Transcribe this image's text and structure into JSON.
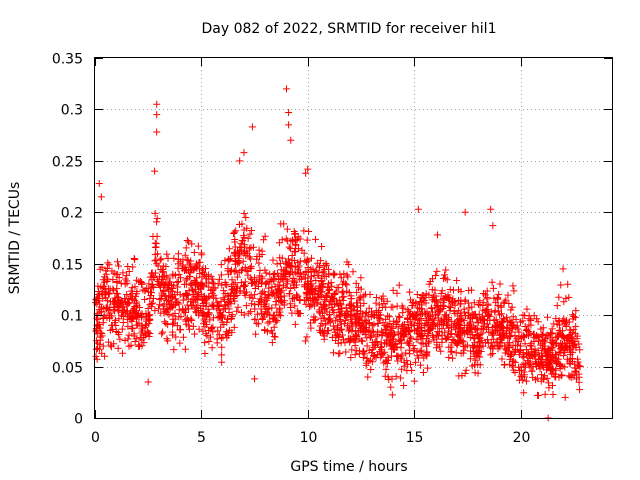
{
  "chart_data": {
    "type": "scatter",
    "title": "Day 082 of 2022, SRMTID for receiver hil1",
    "xlabel": "GPS time / hours",
    "ylabel": "SRMTID / TECUs",
    "xlim": [
      0,
      24.3
    ],
    "ylim": [
      0,
      0.35
    ],
    "x_ticks": [
      0,
      5,
      10,
      15,
      20
    ],
    "x_tick_labels": [
      "0",
      "5",
      "10",
      "15",
      "20"
    ],
    "y_ticks": [
      0,
      0.05,
      0.1,
      0.15,
      0.2,
      0.25,
      0.3,
      0.35
    ],
    "y_tick_labels": [
      "0",
      "0.05",
      "0.1",
      "0.15",
      "0.2",
      "0.25",
      "0.3",
      "0.35"
    ],
    "grid": true,
    "marker": "plus",
    "color": "#ff0000",
    "envelope_note": "dense cloud of points; approximate mean level (hours -> TECUs)",
    "series": [
      {
        "name": "SRMTID",
        "x": [
          0.1,
          0.5,
          1.0,
          1.5,
          2.0,
          2.5,
          2.9,
          3.0,
          3.5,
          4.0,
          4.5,
          5.0,
          5.5,
          6.0,
          6.5,
          7.0,
          7.5,
          8.0,
          8.5,
          9.0,
          9.5,
          10.0,
          10.5,
          11.0,
          11.5,
          12.0,
          12.5,
          13.0,
          13.5,
          14.0,
          14.5,
          15.0,
          15.5,
          16.0,
          16.5,
          17.0,
          17.5,
          18.0,
          18.5,
          19.0,
          19.5,
          20.0,
          20.5,
          21.0,
          21.5,
          22.0,
          22.5,
          22.8
        ],
        "y": [
          0.1,
          0.12,
          0.11,
          0.11,
          0.1,
          0.1,
          0.15,
          0.13,
          0.11,
          0.12,
          0.13,
          0.12,
          0.11,
          0.1,
          0.13,
          0.16,
          0.12,
          0.12,
          0.11,
          0.15,
          0.14,
          0.13,
          0.12,
          0.11,
          0.1,
          0.1,
          0.09,
          0.08,
          0.08,
          0.08,
          0.08,
          0.09,
          0.09,
          0.1,
          0.1,
          0.09,
          0.09,
          0.08,
          0.1,
          0.09,
          0.08,
          0.07,
          0.07,
          0.06,
          0.06,
          0.08,
          0.07,
          0.05
        ]
      }
    ],
    "outliers": [
      {
        "x": 2.9,
        "y": 0.305
      },
      {
        "x": 2.9,
        "y": 0.295
      },
      {
        "x": 2.9,
        "y": 0.278
      },
      {
        "x": 7.4,
        "y": 0.283
      },
      {
        "x": 7.0,
        "y": 0.258
      },
      {
        "x": 6.8,
        "y": 0.25
      },
      {
        "x": 9.0,
        "y": 0.32
      },
      {
        "x": 9.1,
        "y": 0.297
      },
      {
        "x": 9.1,
        "y": 0.285
      },
      {
        "x": 9.2,
        "y": 0.27
      },
      {
        "x": 10.0,
        "y": 0.242
      },
      {
        "x": 9.9,
        "y": 0.238
      },
      {
        "x": 0.2,
        "y": 0.228
      },
      {
        "x": 0.3,
        "y": 0.215
      },
      {
        "x": 2.8,
        "y": 0.24
      },
      {
        "x": 15.2,
        "y": 0.203
      },
      {
        "x": 16.1,
        "y": 0.178
      },
      {
        "x": 17.4,
        "y": 0.2
      },
      {
        "x": 18.6,
        "y": 0.203
      },
      {
        "x": 18.7,
        "y": 0.187
      },
      {
        "x": 22.0,
        "y": 0.145
      },
      {
        "x": 21.3,
        "y": 0.0
      },
      {
        "x": 22.1,
        "y": 0.02
      },
      {
        "x": 13.9,
        "y": 0.03
      },
      {
        "x": 2.5,
        "y": 0.035
      },
      {
        "x": 7.5,
        "y": 0.038
      },
      {
        "x": 20.8,
        "y": 0.022
      }
    ]
  }
}
